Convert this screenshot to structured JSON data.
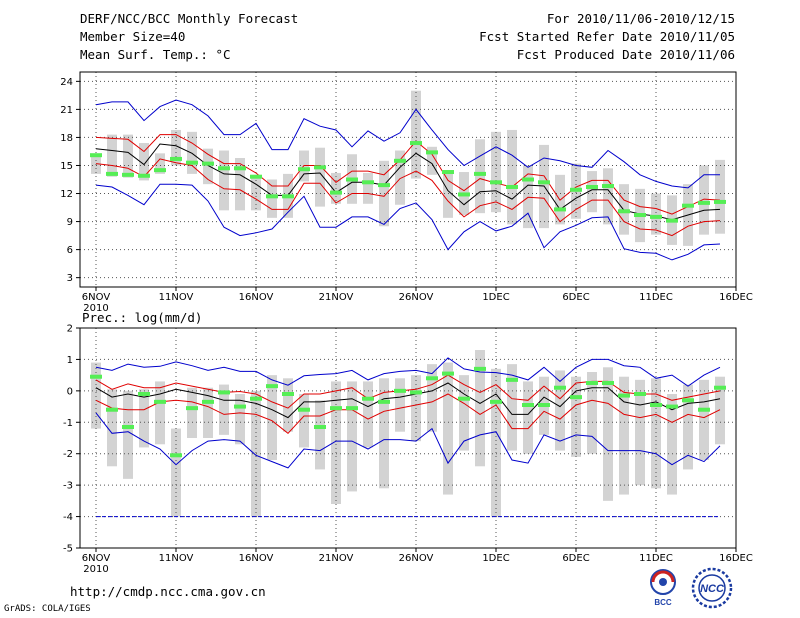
{
  "header": {
    "title": "DERF/NCC/BCC Monthly Forecast",
    "member_size": "Member Size=40",
    "variable": "Mean Surf. Temp.: °C",
    "period": "For 2010/11/06-2010/12/15",
    "started": "Fcst Started Refer Date 2010/11/05",
    "produced": "Fcst Produced Date 2010/11/06"
  },
  "footer": {
    "url": "http://cmdp.ncc.cma.gov.cn",
    "credit": "GrADS: COLA/IGES",
    "logo_bcc": "BCC",
    "logo_ncc": "NCC"
  },
  "colors": {
    "box": "#d3d3d3",
    "mean": "#000000",
    "inner": "#e00000",
    "outer": "#0000cc",
    "median": "#55ee55",
    "grid": "#555555"
  },
  "chart_data": [
    {
      "type": "line",
      "title": "Mean Surf. Temp.: °C",
      "x_tick_labels": [
        "6NOV",
        "11NOV",
        "16NOV",
        "21NOV",
        "26NOV",
        "1DEC",
        "6DEC",
        "11DEC",
        "16DEC"
      ],
      "x_sub_label": "2010",
      "ylim": [
        2,
        25
      ],
      "y_ticks": [
        3,
        6,
        9,
        12,
        15,
        18,
        21,
        24
      ],
      "days": 40,
      "series": [
        {
          "name": "max",
          "values": [
            21.5,
            21.8,
            21.8,
            19.8,
            21.3,
            22,
            21.5,
            20.3,
            18.3,
            18.3,
            19.5,
            16.7,
            16.7,
            20.0,
            19.2,
            18.8,
            17.0,
            18.7,
            17.6,
            18.5,
            21.0,
            18.8,
            16.7,
            15.0,
            16.0,
            17.0,
            16.1,
            14.8,
            15.8,
            15.5,
            15.0,
            14.8,
            16.6,
            15.4,
            14.0,
            13.3,
            12.8,
            12.6,
            14.0,
            14.0
          ]
        },
        {
          "name": "upper",
          "values": [
            18,
            17.9,
            17.8,
            16.5,
            18.3,
            18.3,
            17.4,
            16.2,
            15.2,
            15.2,
            14.2,
            12.8,
            12.8,
            15.0,
            15.0,
            13.2,
            14.4,
            14.4,
            14.0,
            15.6,
            17.6,
            16.2,
            13.4,
            12.3,
            13.6,
            13.1,
            12.7,
            14.1,
            13.9,
            11.3,
            12.7,
            13.4,
            13.4,
            11.3,
            10.6,
            10.4,
            9.8,
            10.6,
            11.4,
            11.3
          ]
        },
        {
          "name": "mean",
          "values": [
            16.8,
            16.6,
            16.4,
            15.1,
            17.3,
            17.1,
            16.3,
            15.0,
            14.1,
            14.0,
            13.0,
            11.8,
            11.8,
            14.1,
            14.2,
            12.1,
            13.2,
            13.2,
            12.9,
            14.8,
            16.3,
            15.2,
            12.3,
            10.8,
            12.2,
            12.3,
            11.4,
            12.9,
            12.8,
            10.3,
            11.5,
            12.4,
            12.4,
            10.2,
            9.8,
            9.6,
            9.2,
            9.7,
            10.2,
            10.3
          ]
        },
        {
          "name": "lower",
          "values": [
            15.2,
            15.0,
            14.7,
            13.8,
            15.7,
            15.3,
            15.0,
            13.5,
            12.5,
            12.4,
            11.4,
            10.3,
            10.3,
            13.1,
            13.1,
            11.0,
            12.0,
            12.0,
            11.7,
            13.6,
            14.4,
            13.4,
            11.2,
            9.5,
            10.7,
            11.1,
            10.3,
            11.6,
            11.5,
            9.0,
            10.3,
            11.3,
            11.3,
            9.0,
            8.2,
            8.1,
            7.5,
            8.5,
            9.0,
            9.1
          ]
        },
        {
          "name": "min",
          "values": [
            12.9,
            12.7,
            11.8,
            10.8,
            13.0,
            13.0,
            12.9,
            11.2,
            8.4,
            7.5,
            7.8,
            8.2,
            10.0,
            11.7,
            8.4,
            8.4,
            9.5,
            9.5,
            8.7,
            10.4,
            11.0,
            9.2,
            6.0,
            7.9,
            9.0,
            8.0,
            8.5,
            9.9,
            6.2,
            7.9,
            8.6,
            9.4,
            9.5,
            6.1,
            5.7,
            5.6,
            4.9,
            5.5,
            6.5,
            6.6
          ]
        },
        {
          "name": "median",
          "values": [
            16.1,
            14.1,
            14.0,
            13.9,
            14.5,
            15.7,
            15.3,
            15.2,
            14.7,
            14.7,
            13.8,
            11.7,
            11.7,
            14.6,
            14.8,
            12.1,
            13.5,
            13.2,
            12.9,
            15.5,
            17.4,
            16.4,
            14.3,
            11.9,
            14.1,
            13.2,
            12.7,
            13.5,
            13.2,
            10.3,
            12.4,
            12.7,
            12.8,
            10.1,
            9.7,
            9.5,
            9.1,
            10.7,
            11.0,
            11.1
          ]
        },
        {
          "name": "box_top",
          "values": [
            16.2,
            18.3,
            18.3,
            17.4,
            16.3,
            18.8,
            18.6,
            16.8,
            16.6,
            15.8,
            13.9,
            13.5,
            14.1,
            16.6,
            16.9,
            14.2,
            16.2,
            14.2,
            15.5,
            16.6,
            23.0,
            17.0,
            14.4,
            14.3,
            17.8,
            18.6,
            18.8,
            15.0,
            17.2,
            14.0,
            15.2,
            14.4,
            14.7,
            13.0,
            12.5,
            12.0,
            11.8,
            13.0,
            15.0,
            15.6
          ]
        },
        {
          "name": "box_bottom",
          "values": [
            14.1,
            13.8,
            13.7,
            13.4,
            14.1,
            15.0,
            14.1,
            13.0,
            10.2,
            10.2,
            10.2,
            9.4,
            9.4,
            13.3,
            10.6,
            10.9,
            10.9,
            10.9,
            8.5,
            10.8,
            13.6,
            14.0,
            9.4,
            9.7,
            9.9,
            10.0,
            8.7,
            8.3,
            8.3,
            8.7,
            9.3,
            10.0,
            8.7,
            7.6,
            6.8,
            7.6,
            6.5,
            6.4,
            7.6,
            7.7
          ]
        }
      ]
    },
    {
      "type": "line",
      "title": "Prec.: log(mm/d)",
      "x_tick_labels": [
        "6NOV",
        "11NOV",
        "16NOV",
        "21NOV",
        "26NOV",
        "1DEC",
        "6DEC",
        "11DEC",
        "16DEC"
      ],
      "x_sub_label": "2010",
      "ylim": [
        -5,
        2
      ],
      "y_ticks": [
        -5,
        -4,
        -3,
        -2,
        -1,
        0,
        1,
        2
      ],
      "days": 40,
      "series": [
        {
          "name": "max",
          "values": [
            0.75,
            0.65,
            0.85,
            0.75,
            0.78,
            0.92,
            0.8,
            0.65,
            0.75,
            0.62,
            0.62,
            0.35,
            0.18,
            0.48,
            0.52,
            0.55,
            0.65,
            0.35,
            0.55,
            0.62,
            0.65,
            0.55,
            1.05,
            0.7,
            0.6,
            0.58,
            0.5,
            0.35,
            0.75,
            0.3,
            0.75,
            1.0,
            1.0,
            0.8,
            0.75,
            0.4,
            0.5,
            0.15,
            0.5,
            0.75
          ]
        },
        {
          "name": "upper",
          "values": [
            0.35,
            0.05,
            0.22,
            0.1,
            0.1,
            0.25,
            0.15,
            0.05,
            -0.05,
            -0.02,
            -0.1,
            -0.35,
            -0.55,
            -0.1,
            -0.1,
            0.0,
            0.1,
            -0.25,
            -0.05,
            0.0,
            0.05,
            0.2,
            0.5,
            0.2,
            -0.05,
            0.2,
            -0.25,
            -0.3,
            0.15,
            -0.25,
            0.25,
            0.3,
            0.3,
            -0.05,
            -0.1,
            -0.1,
            -0.3,
            -0.2,
            -0.1,
            0.0
          ]
        },
        {
          "name": "mean",
          "values": [
            0.1,
            -0.2,
            -0.1,
            -0.2,
            -0.1,
            0.05,
            -0.05,
            -0.15,
            -0.3,
            -0.3,
            -0.4,
            -0.6,
            -0.85,
            -0.35,
            -0.35,
            -0.3,
            -0.25,
            -0.5,
            -0.25,
            -0.2,
            -0.1,
            0.0,
            0.25,
            -0.1,
            -0.4,
            -0.1,
            -0.75,
            -0.75,
            -0.2,
            -0.5,
            0.0,
            0.1,
            0.1,
            -0.35,
            -0.45,
            -0.35,
            -0.6,
            -0.4,
            -0.35,
            -0.25
          ]
        },
        {
          "name": "lower",
          "values": [
            -0.3,
            -0.55,
            -0.6,
            -0.6,
            -0.35,
            -0.3,
            -0.35,
            -0.5,
            -0.75,
            -0.7,
            -0.75,
            -0.95,
            -1.35,
            -0.8,
            -0.8,
            -0.6,
            -0.6,
            -0.9,
            -0.65,
            -0.55,
            -0.45,
            -0.35,
            -0.1,
            -0.4,
            -0.75,
            -0.45,
            -1.2,
            -1.2,
            -0.65,
            -0.9,
            -0.45,
            -0.3,
            -0.4,
            -0.75,
            -0.85,
            -0.75,
            -1.0,
            -0.75,
            -0.85,
            -0.6
          ]
        },
        {
          "name": "min",
          "values": [
            -0.7,
            -1.35,
            -1.3,
            -1.6,
            -1.85,
            -2.35,
            -1.9,
            -1.6,
            -1.55,
            -1.6,
            -2.05,
            -2.25,
            -2.45,
            -1.85,
            -1.9,
            -1.6,
            -1.6,
            -1.85,
            -1.55,
            -1.55,
            -1.6,
            -1.2,
            -2.3,
            -1.6,
            -1.4,
            -1.3,
            -2.2,
            -2.3,
            -1.4,
            -1.6,
            -1.4,
            -1.45,
            -1.9,
            -1.9,
            -1.9,
            -2.0,
            -2.35,
            -2.05,
            -2.25,
            -1.75
          ]
        },
        {
          "name": "median",
          "values": [
            0.45,
            -0.6,
            -1.15,
            -0.1,
            -0.35,
            -2.05,
            -0.55,
            -0.35,
            -0.05,
            -0.5,
            -0.25,
            0.15,
            -0.1,
            -0.6,
            -1.15,
            -0.55,
            -0.55,
            -0.25,
            -0.35,
            0.0,
            -0.05,
            0.4,
            0.55,
            -0.25,
            0.7,
            -0.35,
            0.35,
            -0.45,
            -0.45,
            0.1,
            -0.2,
            0.25,
            0.25,
            -0.15,
            -0.1,
            -0.45,
            -0.5,
            -0.3,
            -0.6,
            0.1
          ]
        },
        {
          "name": "floor",
          "values": [
            -4,
            -4,
            -4,
            -4,
            -4,
            -4,
            -4,
            -4,
            -4,
            -4,
            -4,
            -4,
            -4,
            -4,
            -4,
            -4,
            -4,
            -4,
            -4,
            -4,
            -4,
            -4,
            -4,
            -4,
            -4,
            -4,
            -4,
            -4,
            -4,
            -4,
            -4,
            -4,
            -4,
            -4,
            -4,
            -4,
            -4,
            -4,
            -4,
            -4
          ]
        },
        {
          "name": "box_top",
          "values": [
            0.9,
            0.05,
            0.0,
            0.05,
            0.3,
            -1.2,
            0.1,
            0.1,
            0.2,
            -0.1,
            0.0,
            0.5,
            0.4,
            -0.1,
            -0.3,
            0.3,
            0.3,
            0.3,
            0.4,
            0.4,
            0.5,
            0.85,
            0.9,
            0.5,
            1.3,
            0.7,
            0.85,
            0.3,
            0.45,
            0.65,
            0.45,
            0.6,
            0.75,
            0.45,
            0.35,
            0.4,
            -0.1,
            0.2,
            0.35,
            0.45
          ]
        },
        {
          "name": "box_bottom",
          "values": [
            -1.2,
            -2.4,
            -2.8,
            -1.8,
            -1.7,
            -4.0,
            -1.5,
            -1.5,
            -1.4,
            -1.7,
            -4.0,
            -2.2,
            -1.3,
            -1.8,
            -2.5,
            -3.6,
            -3.2,
            -1.8,
            -3.1,
            -1.3,
            -1.6,
            -1.3,
            -3.3,
            -1.9,
            -2.4,
            -4.0,
            -1.9,
            -2.0,
            -1.4,
            -1.9,
            -2.1,
            -2.0,
            -3.5,
            -3.3,
            -3.0,
            -3.1,
            -3.3,
            -2.5,
            -2.2,
            -1.7
          ]
        }
      ]
    }
  ]
}
